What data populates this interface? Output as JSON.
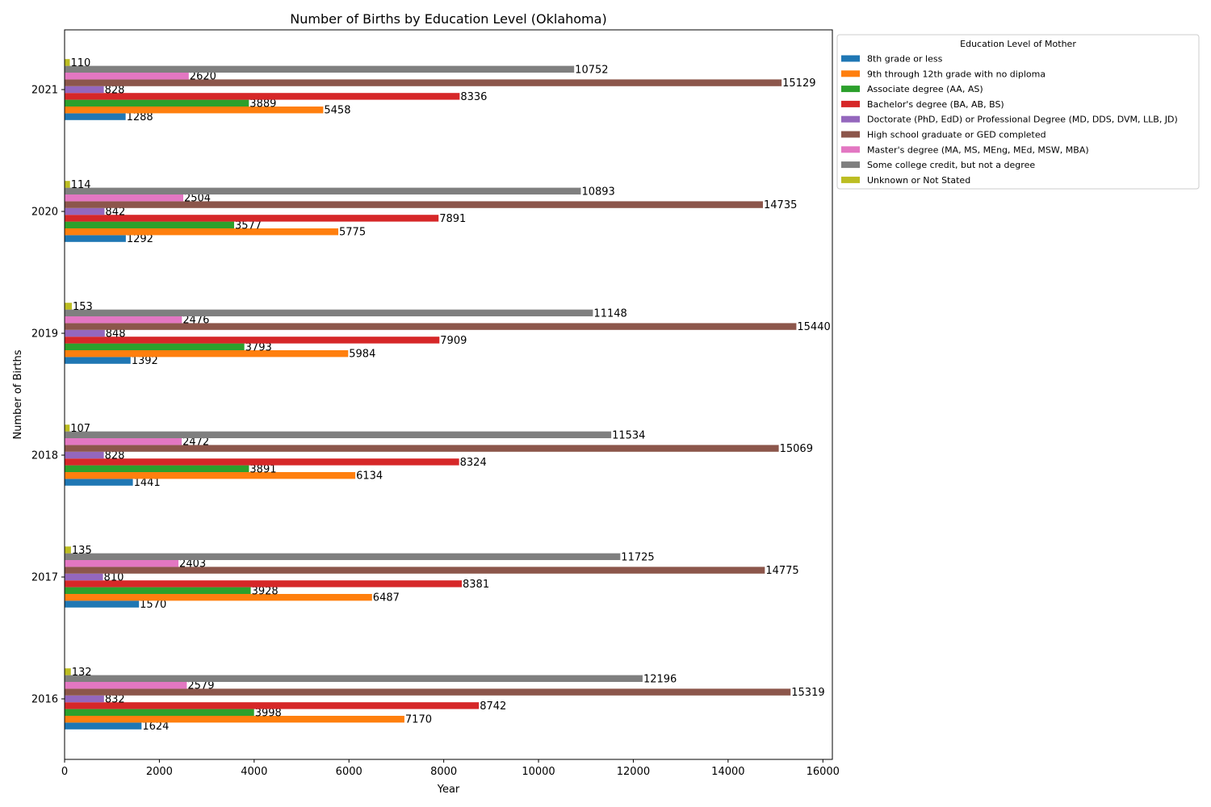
{
  "chart_data": {
    "type": "bar",
    "orientation": "horizontal",
    "title": "Number of Births by Education Level (Oklahoma)",
    "xlabel": "Year",
    "ylabel": "Number of Births",
    "xlim": [
      0,
      16200
    ],
    "x_ticks": [
      0,
      2000,
      4000,
      6000,
      8000,
      10000,
      12000,
      14000,
      16000
    ],
    "x_tick_labels": [
      "0",
      "2000",
      "4000",
      "6000",
      "8000",
      "10000",
      "12000",
      "14000",
      "16000"
    ],
    "categories": [
      "2016",
      "2017",
      "2018",
      "2019",
      "2020",
      "2021"
    ],
    "grid": false,
    "legend": {
      "title": "Education Level of Mother",
      "placement": "outside-upper-right"
    },
    "series": [
      {
        "name": "8th grade or less",
        "color": "#1f77b4",
        "values": [
          1624,
          1570,
          1441,
          1392,
          1292,
          1288
        ]
      },
      {
        "name": "9th through 12th grade with no diploma",
        "color": "#ff7f0e",
        "values": [
          7170,
          6487,
          6134,
          5984,
          5775,
          5458
        ]
      },
      {
        "name": "Associate degree (AA, AS)",
        "color": "#2ca02c",
        "values": [
          3998,
          3928,
          3891,
          3793,
          3577,
          3889
        ]
      },
      {
        "name": "Bachelor's degree (BA, AB, BS)",
        "color": "#d62728",
        "values": [
          8742,
          8381,
          8324,
          7909,
          7891,
          8336
        ]
      },
      {
        "name": "Doctorate (PhD, EdD) or Professional Degree (MD, DDS, DVM, LLB, JD)",
        "color": "#9467bd",
        "values": [
          832,
          810,
          828,
          848,
          842,
          828
        ]
      },
      {
        "name": "High school graduate or GED completed",
        "color": "#8c564b",
        "values": [
          15319,
          14775,
          15069,
          15440,
          14735,
          15129
        ]
      },
      {
        "name": "Master's degree (MA, MS, MEng, MEd, MSW, MBA)",
        "color": "#e377c2",
        "values": [
          2579,
          2403,
          2472,
          2476,
          2504,
          2620
        ]
      },
      {
        "name": "Some college credit, but not a degree",
        "color": "#7f7f7f",
        "values": [
          12196,
          11725,
          11534,
          11148,
          10893,
          10752
        ]
      },
      {
        "name": "Unknown or Not Stated",
        "color": "#bcbd22",
        "values": [
          132,
          135,
          107,
          153,
          114,
          110
        ]
      }
    ]
  }
}
